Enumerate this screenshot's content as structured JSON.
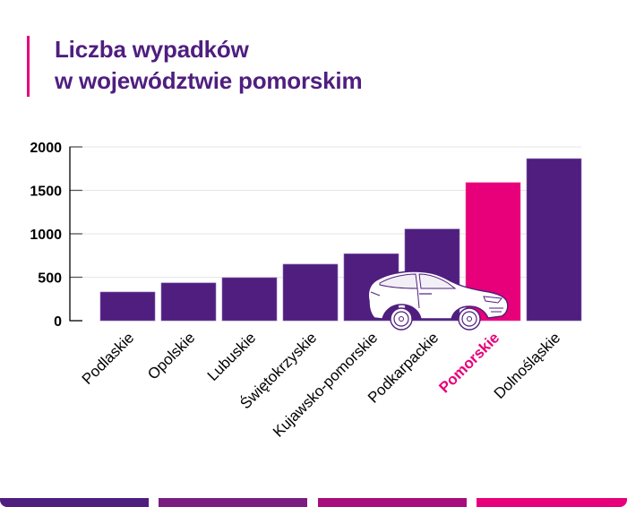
{
  "header": {
    "title_line1": "Liczba wypadków",
    "title_line2": "w województwie pomorskim"
  },
  "colors": {
    "primary": "#4f1e7f",
    "highlight": "#e8007a",
    "grid": "#e6e6e6",
    "axis": "#000000",
    "stripes": [
      "#4f1e7f",
      "#7a1e80",
      "#a80c7d",
      "#e8007a"
    ]
  },
  "chart_data": {
    "type": "bar",
    "title": "Liczba wypadków w województwie pomorskim",
    "xlabel": "",
    "ylabel": "",
    "categories": [
      "Podlaskie",
      "Opolskie",
      "Lubuskie",
      "Świętokrzyskie",
      "Kujawsko-pomorskie",
      "Podkarpackie",
      "Pomorskie",
      "Dolnośląskie"
    ],
    "values": [
      330,
      435,
      495,
      650,
      770,
      1055,
      1590,
      1865
    ],
    "highlight_category": "Pomorskie",
    "ylim": [
      0,
      2000
    ],
    "yticks": [
      0,
      500,
      1000,
      1500,
      2000
    ],
    "ytick_labels": [
      "0",
      "500",
      "1000",
      "1500",
      "2000"
    ],
    "grid": true,
    "legend": "none",
    "decoration": "car-illustration"
  }
}
